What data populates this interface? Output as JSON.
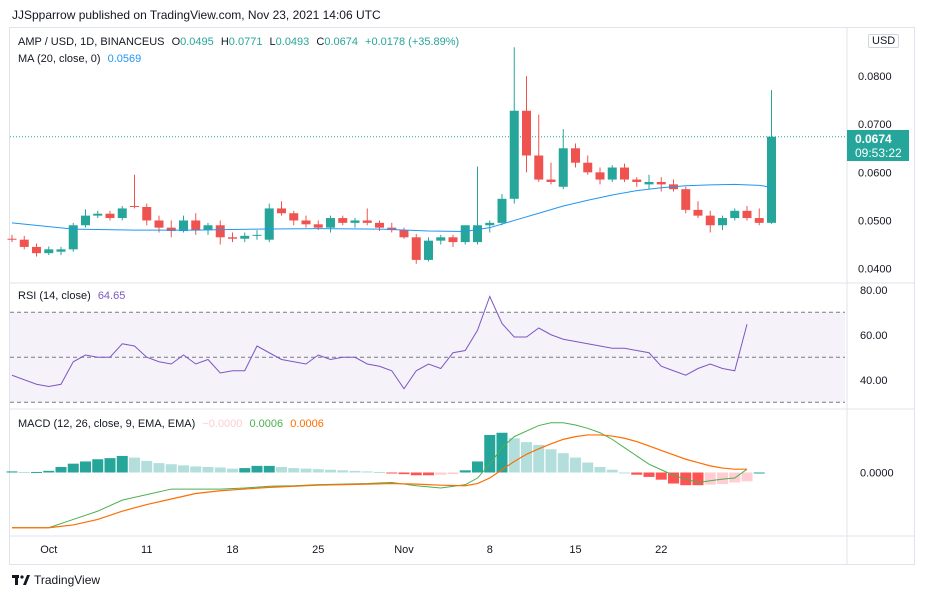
{
  "header": {
    "publish_line": "JJSpparrow published on TradingView.com, Nov 23, 2021 14:06 UTC"
  },
  "legend": {
    "symbol": "AMP / USD, 1D, BINANCEUS",
    "open_label": "O",
    "open_value": "0.0495",
    "high_label": "H",
    "high_value": "0.0771",
    "low_label": "L",
    "low_value": "0.0493",
    "close_label": "C",
    "close_value": "0.0674",
    "change": "+0.0178 (+35.89%)",
    "ma_label": "MA (20, close, 0)",
    "ma_value": "0.0569",
    "rsi_label": "RSI (14, close)",
    "rsi_value": "64.65",
    "macd_label": "MACD (12, 26, close, 9, EMA, EMA)",
    "macd_hist": "−0.0000",
    "macd_line": "0.0006",
    "macd_signal": "0.0006"
  },
  "price_badge": {
    "price": "0.0674",
    "countdown": "09:53:22"
  },
  "currency_button": "USD",
  "footer": {
    "brand": "TradingView",
    "logo_icon": "tradingview-logo-icon"
  },
  "colors": {
    "up": "#26a69a",
    "down": "#ef5350",
    "ma": "#2196f3",
    "rsi": "#7e57c2",
    "macd": "#4caf50",
    "signal": "#ff6d00",
    "hist_up_dark": "#26a69a",
    "hist_up_light": "#b2dfdb",
    "hist_down_dark": "#ff5252",
    "hist_down_light": "#ffcdd2"
  },
  "chart_data": [
    {
      "type": "candlestick",
      "pane": "price",
      "ylim": [
        0.037,
        0.09
      ],
      "y_ticks": [
        "0.0400",
        "0.0500",
        "0.0600",
        "0.0700",
        "0.0800"
      ],
      "x_tick_labels": [
        "Oct",
        "11",
        "18",
        "25",
        "Nov",
        "8",
        "15",
        "22"
      ],
      "x_tick_days": [
        3,
        11,
        18,
        25,
        32,
        39,
        46,
        53
      ],
      "last_price_line": 0.0674,
      "candles": [
        {
          "d": 0,
          "o": 0.0462,
          "h": 0.047,
          "l": 0.0455,
          "c": 0.0461
        },
        {
          "d": 1,
          "o": 0.046,
          "h": 0.0468,
          "l": 0.044,
          "c": 0.0445
        },
        {
          "d": 2,
          "o": 0.0445,
          "h": 0.0452,
          "l": 0.0425,
          "c": 0.0432
        },
        {
          "d": 3,
          "o": 0.0432,
          "h": 0.0446,
          "l": 0.0428,
          "c": 0.044
        },
        {
          "d": 4,
          "o": 0.0435,
          "h": 0.0445,
          "l": 0.0428,
          "c": 0.044
        },
        {
          "d": 5,
          "o": 0.044,
          "h": 0.0495,
          "l": 0.0435,
          "c": 0.049
        },
        {
          "d": 6,
          "o": 0.049,
          "h": 0.0523,
          "l": 0.0485,
          "c": 0.051
        },
        {
          "d": 7,
          "o": 0.051,
          "h": 0.052,
          "l": 0.0505,
          "c": 0.0514
        },
        {
          "d": 8,
          "o": 0.0514,
          "h": 0.052,
          "l": 0.05,
          "c": 0.0505
        },
        {
          "d": 9,
          "o": 0.0505,
          "h": 0.053,
          "l": 0.05,
          "c": 0.0525
        },
        {
          "d": 10,
          "o": 0.053,
          "h": 0.0595,
          "l": 0.0525,
          "c": 0.0528
        },
        {
          "d": 11,
          "o": 0.0528,
          "h": 0.0535,
          "l": 0.049,
          "c": 0.05
        },
        {
          "d": 12,
          "o": 0.05,
          "h": 0.051,
          "l": 0.0475,
          "c": 0.0485
        },
        {
          "d": 13,
          "o": 0.0485,
          "h": 0.05,
          "l": 0.0465,
          "c": 0.0478
        },
        {
          "d": 14,
          "o": 0.0478,
          "h": 0.051,
          "l": 0.0475,
          "c": 0.05
        },
        {
          "d": 15,
          "o": 0.05,
          "h": 0.0515,
          "l": 0.047,
          "c": 0.048
        },
        {
          "d": 16,
          "o": 0.048,
          "h": 0.0495,
          "l": 0.047,
          "c": 0.049
        },
        {
          "d": 17,
          "o": 0.049,
          "h": 0.05,
          "l": 0.045,
          "c": 0.0465
        },
        {
          "d": 18,
          "o": 0.0465,
          "h": 0.0475,
          "l": 0.0455,
          "c": 0.0462
        },
        {
          "d": 19,
          "o": 0.0462,
          "h": 0.0475,
          "l": 0.0455,
          "c": 0.0468
        },
        {
          "d": 20,
          "o": 0.0468,
          "h": 0.048,
          "l": 0.046,
          "c": 0.047
        },
        {
          "d": 21,
          "o": 0.046,
          "h": 0.0535,
          "l": 0.0455,
          "c": 0.0525
        },
        {
          "d": 22,
          "o": 0.0525,
          "h": 0.054,
          "l": 0.051,
          "c": 0.0515
        },
        {
          "d": 23,
          "o": 0.0515,
          "h": 0.052,
          "l": 0.049,
          "c": 0.05
        },
        {
          "d": 24,
          "o": 0.05,
          "h": 0.051,
          "l": 0.0485,
          "c": 0.0492
        },
        {
          "d": 25,
          "o": 0.0492,
          "h": 0.05,
          "l": 0.048,
          "c": 0.0485
        },
        {
          "d": 26,
          "o": 0.0485,
          "h": 0.051,
          "l": 0.0475,
          "c": 0.0505
        },
        {
          "d": 27,
          "o": 0.0505,
          "h": 0.051,
          "l": 0.049,
          "c": 0.0495
        },
        {
          "d": 28,
          "o": 0.0495,
          "h": 0.0505,
          "l": 0.0485,
          "c": 0.05
        },
        {
          "d": 29,
          "o": 0.05,
          "h": 0.0525,
          "l": 0.049,
          "c": 0.0495
        },
        {
          "d": 30,
          "o": 0.0495,
          "h": 0.05,
          "l": 0.0478,
          "c": 0.0485
        },
        {
          "d": 31,
          "o": 0.0485,
          "h": 0.0495,
          "l": 0.0475,
          "c": 0.048
        },
        {
          "d": 32,
          "o": 0.048,
          "h": 0.0485,
          "l": 0.0462,
          "c": 0.0465
        },
        {
          "d": 33,
          "o": 0.0465,
          "h": 0.0472,
          "l": 0.041,
          "c": 0.0418
        },
        {
          "d": 34,
          "o": 0.0418,
          "h": 0.0465,
          "l": 0.0415,
          "c": 0.0458
        },
        {
          "d": 35,
          "o": 0.0458,
          "h": 0.047,
          "l": 0.045,
          "c": 0.0465
        },
        {
          "d": 36,
          "o": 0.0465,
          "h": 0.047,
          "l": 0.0445,
          "c": 0.0455
        },
        {
          "d": 37,
          "o": 0.0455,
          "h": 0.049,
          "l": 0.045,
          "c": 0.049
        },
        {
          "d": 38,
          "o": 0.0455,
          "h": 0.0612,
          "l": 0.045,
          "c": 0.049
        },
        {
          "d": 39,
          "o": 0.049,
          "h": 0.05,
          "l": 0.0475,
          "c": 0.0495
        },
        {
          "d": 40,
          "o": 0.0495,
          "h": 0.0555,
          "l": 0.049,
          "c": 0.0545
        },
        {
          "d": 41,
          "o": 0.0545,
          "h": 0.086,
          "l": 0.0535,
          "c": 0.0728
        },
        {
          "d": 42,
          "o": 0.0728,
          "h": 0.08,
          "l": 0.06,
          "c": 0.0635
        },
        {
          "d": 43,
          "o": 0.0635,
          "h": 0.072,
          "l": 0.058,
          "c": 0.0585
        },
        {
          "d": 44,
          "o": 0.0585,
          "h": 0.062,
          "l": 0.0575,
          "c": 0.058
        },
        {
          "d": 45,
          "o": 0.057,
          "h": 0.069,
          "l": 0.0565,
          "c": 0.065
        },
        {
          "d": 46,
          "o": 0.065,
          "h": 0.066,
          "l": 0.061,
          "c": 0.062
        },
        {
          "d": 47,
          "o": 0.062,
          "h": 0.0635,
          "l": 0.0595,
          "c": 0.06
        },
        {
          "d": 48,
          "o": 0.06,
          "h": 0.061,
          "l": 0.0575,
          "c": 0.0585
        },
        {
          "d": 49,
          "o": 0.0585,
          "h": 0.0615,
          "l": 0.058,
          "c": 0.061
        },
        {
          "d": 50,
          "o": 0.061,
          "h": 0.0618,
          "l": 0.058,
          "c": 0.0585
        },
        {
          "d": 51,
          "o": 0.0585,
          "h": 0.059,
          "l": 0.057,
          "c": 0.058
        },
        {
          "d": 52,
          "o": 0.0575,
          "h": 0.0595,
          "l": 0.0565,
          "c": 0.058
        },
        {
          "d": 53,
          "o": 0.058,
          "h": 0.059,
          "l": 0.056,
          "c": 0.0575
        },
        {
          "d": 54,
          "o": 0.0575,
          "h": 0.0585,
          "l": 0.056,
          "c": 0.0565
        },
        {
          "d": 55,
          "o": 0.0565,
          "h": 0.057,
          "l": 0.0515,
          "c": 0.0522
        },
        {
          "d": 56,
          "o": 0.0522,
          "h": 0.054,
          "l": 0.0505,
          "c": 0.051
        },
        {
          "d": 57,
          "o": 0.051,
          "h": 0.052,
          "l": 0.0475,
          "c": 0.049
        },
        {
          "d": 58,
          "o": 0.049,
          "h": 0.051,
          "l": 0.048,
          "c": 0.0505
        },
        {
          "d": 59,
          "o": 0.0505,
          "h": 0.0525,
          "l": 0.05,
          "c": 0.052
        },
        {
          "d": 60,
          "o": 0.052,
          "h": 0.053,
          "l": 0.05,
          "c": 0.0505
        },
        {
          "d": 61,
          "o": 0.0505,
          "h": 0.0525,
          "l": 0.049,
          "c": 0.0495
        },
        {
          "d": 62,
          "o": 0.0495,
          "h": 0.0771,
          "l": 0.0493,
          "c": 0.0674
        }
      ],
      "ma20": [
        [
          0,
          0.0495
        ],
        [
          5,
          0.0482
        ],
        [
          10,
          0.048
        ],
        [
          15,
          0.048
        ],
        [
          20,
          0.0482
        ],
        [
          25,
          0.0483
        ],
        [
          30,
          0.0482
        ],
        [
          34,
          0.0478
        ],
        [
          37,
          0.0477
        ],
        [
          39,
          0.0485
        ],
        [
          41,
          0.05
        ],
        [
          43,
          0.0515
        ],
        [
          45,
          0.053
        ],
        [
          47,
          0.0542
        ],
        [
          49,
          0.0553
        ],
        [
          51,
          0.0562
        ],
        [
          53,
          0.0568
        ],
        [
          55,
          0.0572
        ],
        [
          57,
          0.0574
        ],
        [
          59,
          0.0575
        ],
        [
          61,
          0.0573
        ],
        [
          62,
          0.0569
        ]
      ]
    },
    {
      "type": "line",
      "pane": "rsi",
      "ylim": [
        27,
        83
      ],
      "y_ticks": [
        "40.00",
        "60.00",
        "80.00"
      ],
      "bands": [
        30,
        50,
        70
      ],
      "values": [
        [
          0,
          42
        ],
        [
          2,
          38
        ],
        [
          3,
          37
        ],
        [
          4,
          38
        ],
        [
          5,
          48
        ],
        [
          6,
          51
        ],
        [
          7,
          50
        ],
        [
          8,
          50
        ],
        [
          9,
          56
        ],
        [
          10,
          55
        ],
        [
          11,
          50
        ],
        [
          12,
          48
        ],
        [
          13,
          47
        ],
        [
          14,
          51
        ],
        [
          15,
          47
        ],
        [
          16,
          49
        ],
        [
          17,
          43
        ],
        [
          18,
          44
        ],
        [
          19,
          44
        ],
        [
          20,
          55
        ],
        [
          21,
          52
        ],
        [
          22,
          49
        ],
        [
          23,
          48
        ],
        [
          24,
          47
        ],
        [
          25,
          51
        ],
        [
          26,
          49
        ],
        [
          27,
          50
        ],
        [
          28,
          50
        ],
        [
          29,
          47
        ],
        [
          30,
          46
        ],
        [
          31,
          44
        ],
        [
          32,
          36
        ],
        [
          33,
          44
        ],
        [
          34,
          47
        ],
        [
          35,
          45
        ],
        [
          36,
          52
        ],
        [
          37,
          53
        ],
        [
          38,
          62
        ],
        [
          39,
          77
        ],
        [
          40,
          65
        ],
        [
          41,
          59
        ],
        [
          42,
          59
        ],
        [
          43,
          63
        ],
        [
          44,
          60
        ],
        [
          45,
          58
        ],
        [
          46,
          57
        ],
        [
          47,
          56
        ],
        [
          48,
          55
        ],
        [
          49,
          54
        ],
        [
          50,
          54
        ],
        [
          51,
          53
        ],
        [
          52,
          52
        ],
        [
          53,
          46
        ],
        [
          54,
          44
        ],
        [
          55,
          42
        ],
        [
          56,
          45
        ],
        [
          57,
          47
        ],
        [
          58,
          45
        ],
        [
          59,
          44
        ],
        [
          60,
          64.65
        ]
      ]
    },
    {
      "type": "bar_and_line",
      "pane": "macd",
      "ylim": [
        -0.0115,
        0.0115
      ],
      "y_ticks": [
        "0.0000"
      ],
      "histogram": [
        0.0002,
        0.0001,
        0.0001,
        0.0003,
        0.001,
        0.0016,
        0.002,
        0.0024,
        0.0026,
        0.003,
        0.0027,
        0.0021,
        0.0017,
        0.0015,
        0.0013,
        0.0011,
        0.001,
        0.0009,
        0.0007,
        0.0008,
        0.0012,
        0.0012,
        0.001,
        0.0008,
        0.0007,
        0.0006,
        0.0005,
        0.0004,
        0.0003,
        0.0002,
        0.0001,
        -0.0001,
        -0.0003,
        -0.0005,
        -0.0005,
        -0.0004,
        -0.0003,
        0.0004,
        0.002,
        0.0068,
        0.0072,
        0.0062,
        0.0055,
        0.005,
        0.0042,
        0.0035,
        0.0027,
        0.0018,
        0.001,
        0.0005,
        0.0,
        -0.0004,
        -0.0008,
        -0.0013,
        -0.002,
        -0.0023,
        -0.0023,
        -0.0022,
        -0.0021,
        -0.0018,
        -0.0016,
        -0.0
      ],
      "macd_line": [
        [
          0,
          -0.01
        ],
        [
          3,
          -0.01
        ],
        [
          5,
          -0.0085
        ],
        [
          7,
          -0.007
        ],
        [
          9,
          -0.005
        ],
        [
          11,
          -0.004
        ],
        [
          13,
          -0.003
        ],
        [
          15,
          -0.003
        ],
        [
          17,
          -0.003
        ],
        [
          19,
          -0.0028
        ],
        [
          21,
          -0.0025
        ],
        [
          23,
          -0.0024
        ],
        [
          25,
          -0.0022
        ],
        [
          27,
          -0.0021
        ],
        [
          29,
          -0.002
        ],
        [
          31,
          -0.0018
        ],
        [
          33,
          -0.0024
        ],
        [
          35,
          -0.0028
        ],
        [
          37,
          -0.0022
        ],
        [
          38,
          -0.001
        ],
        [
          39,
          0.0015
        ],
        [
          40,
          0.0045
        ],
        [
          41,
          0.0065
        ],
        [
          42,
          0.0075
        ],
        [
          43,
          0.0085
        ],
        [
          44,
          0.009
        ],
        [
          45,
          0.009
        ],
        [
          46,
          0.0086
        ],
        [
          47,
          0.008
        ],
        [
          48,
          0.0072
        ],
        [
          49,
          0.006
        ],
        [
          50,
          0.0045
        ],
        [
          51,
          0.003
        ],
        [
          52,
          0.0015
        ],
        [
          53,
          0.0005
        ],
        [
          54,
          -0.0005
        ],
        [
          55,
          -0.0012
        ],
        [
          56,
          -0.0018
        ],
        [
          57,
          -0.0015
        ],
        [
          58,
          -0.0012
        ],
        [
          59,
          -0.001
        ],
        [
          60,
          0.0006
        ]
      ],
      "signal_line": [
        [
          0,
          -0.01
        ],
        [
          3,
          -0.01
        ],
        [
          5,
          -0.0095
        ],
        [
          7,
          -0.0085
        ],
        [
          9,
          -0.007
        ],
        [
          11,
          -0.0058
        ],
        [
          13,
          -0.0048
        ],
        [
          15,
          -0.0038
        ],
        [
          17,
          -0.0033
        ],
        [
          19,
          -0.003
        ],
        [
          21,
          -0.0027
        ],
        [
          23,
          -0.0025
        ],
        [
          25,
          -0.0023
        ],
        [
          27,
          -0.0022
        ],
        [
          29,
          -0.0021
        ],
        [
          31,
          -0.002
        ],
        [
          33,
          -0.0021
        ],
        [
          35,
          -0.0023
        ],
        [
          37,
          -0.0024
        ],
        [
          38,
          -0.002
        ],
        [
          39,
          -0.001
        ],
        [
          40,
          0.0005
        ],
        [
          41,
          0.002
        ],
        [
          42,
          0.0033
        ],
        [
          43,
          0.0043
        ],
        [
          44,
          0.0052
        ],
        [
          45,
          0.006
        ],
        [
          46,
          0.0065
        ],
        [
          47,
          0.0068
        ],
        [
          48,
          0.0068
        ],
        [
          49,
          0.0066
        ],
        [
          50,
          0.0062
        ],
        [
          51,
          0.0056
        ],
        [
          52,
          0.0048
        ],
        [
          53,
          0.004
        ],
        [
          54,
          0.0032
        ],
        [
          55,
          0.0024
        ],
        [
          56,
          0.0018
        ],
        [
          57,
          0.0012
        ],
        [
          58,
          0.0008
        ],
        [
          59,
          0.0006
        ],
        [
          60,
          0.0006
        ]
      ]
    }
  ]
}
